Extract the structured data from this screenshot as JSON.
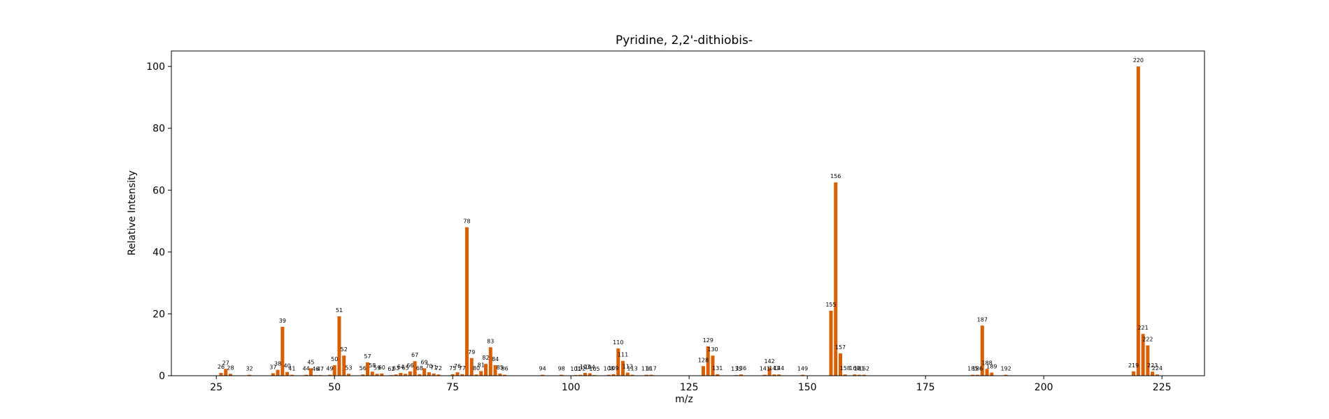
{
  "chart_data": {
    "type": "bar",
    "title": "Pyridine, 2,2'-dithiobis-",
    "xlabel": "m/z",
    "ylabel": "Relative Intensity",
    "xlim": [
      15.5,
      234
    ],
    "ylim": [
      0,
      105
    ],
    "grid": false,
    "bar_color": "#d95f02",
    "xticks": [
      25,
      50,
      75,
      100,
      125,
      150,
      175,
      200,
      225
    ],
    "yticks": [
      0,
      20,
      40,
      60,
      80,
      100
    ],
    "peaks": [
      {
        "mz": 26,
        "intensity": 0.9
      },
      {
        "mz": 27,
        "intensity": 2.2
      },
      {
        "mz": 28,
        "intensity": 0.6
      },
      {
        "mz": 32,
        "intensity": 0.3
      },
      {
        "mz": 37,
        "intensity": 0.8
      },
      {
        "mz": 38,
        "intensity": 1.9
      },
      {
        "mz": 39,
        "intensity": 15.8
      },
      {
        "mz": 40,
        "intensity": 1.2
      },
      {
        "mz": 41,
        "intensity": 0.3
      },
      {
        "mz": 44,
        "intensity": 0.3
      },
      {
        "mz": 45,
        "intensity": 2.4
      },
      {
        "mz": 46,
        "intensity": 0.2
      },
      {
        "mz": 47,
        "intensity": 0.2
      },
      {
        "mz": 49,
        "intensity": 0.3
      },
      {
        "mz": 50,
        "intensity": 3.4
      },
      {
        "mz": 51,
        "intensity": 19.2
      },
      {
        "mz": 52,
        "intensity": 6.5
      },
      {
        "mz": 53,
        "intensity": 0.6
      },
      {
        "mz": 56,
        "intensity": 0.4
      },
      {
        "mz": 57,
        "intensity": 4.3
      },
      {
        "mz": 58,
        "intensity": 1.3
      },
      {
        "mz": 59,
        "intensity": 0.6
      },
      {
        "mz": 60,
        "intensity": 0.7
      },
      {
        "mz": 62,
        "intensity": 0.2
      },
      {
        "mz": 63,
        "intensity": 0.4
      },
      {
        "mz": 64,
        "intensity": 0.9
      },
      {
        "mz": 65,
        "intensity": 0.6
      },
      {
        "mz": 66,
        "intensity": 1.4
      },
      {
        "mz": 67,
        "intensity": 4.7
      },
      {
        "mz": 68,
        "intensity": 0.5
      },
      {
        "mz": 69,
        "intensity": 2.4
      },
      {
        "mz": 70,
        "intensity": 1.1
      },
      {
        "mz": 71,
        "intensity": 0.7
      },
      {
        "mz": 72,
        "intensity": 0.4
      },
      {
        "mz": 75,
        "intensity": 0.5
      },
      {
        "mz": 76,
        "intensity": 1.1
      },
      {
        "mz": 77,
        "intensity": 0.5
      },
      {
        "mz": 78,
        "intensity": 48.0
      },
      {
        "mz": 79,
        "intensity": 5.7
      },
      {
        "mz": 80,
        "intensity": 0.4
      },
      {
        "mz": 81,
        "intensity": 1.5
      },
      {
        "mz": 82,
        "intensity": 3.8
      },
      {
        "mz": 83,
        "intensity": 9.2
      },
      {
        "mz": 84,
        "intensity": 3.4
      },
      {
        "mz": 85,
        "intensity": 0.7
      },
      {
        "mz": 86,
        "intensity": 0.3
      },
      {
        "mz": 94,
        "intensity": 0.3
      },
      {
        "mz": 98,
        "intensity": 0.3
      },
      {
        "mz": 101,
        "intensity": 0.2
      },
      {
        "mz": 102,
        "intensity": 0.3
      },
      {
        "mz": 103,
        "intensity": 0.9
      },
      {
        "mz": 104,
        "intensity": 0.8
      },
      {
        "mz": 105,
        "intensity": 0.2
      },
      {
        "mz": 108,
        "intensity": 0.3
      },
      {
        "mz": 109,
        "intensity": 0.5
      },
      {
        "mz": 110,
        "intensity": 8.8
      },
      {
        "mz": 111,
        "intensity": 4.8
      },
      {
        "mz": 112,
        "intensity": 1.0
      },
      {
        "mz": 113,
        "intensity": 0.3
      },
      {
        "mz": 116,
        "intensity": 0.3
      },
      {
        "mz": 117,
        "intensity": 0.3
      },
      {
        "mz": 128,
        "intensity": 3.1
      },
      {
        "mz": 129,
        "intensity": 9.5
      },
      {
        "mz": 130,
        "intensity": 6.5
      },
      {
        "mz": 131,
        "intensity": 0.5
      },
      {
        "mz": 135,
        "intensity": 0.2
      },
      {
        "mz": 136,
        "intensity": 0.4
      },
      {
        "mz": 141,
        "intensity": 0.3
      },
      {
        "mz": 142,
        "intensity": 2.7
      },
      {
        "mz": 143,
        "intensity": 0.4
      },
      {
        "mz": 144,
        "intensity": 0.4
      },
      {
        "mz": 149,
        "intensity": 0.3
      },
      {
        "mz": 155,
        "intensity": 21.0
      },
      {
        "mz": 156,
        "intensity": 62.5
      },
      {
        "mz": 157,
        "intensity": 7.2
      },
      {
        "mz": 158,
        "intensity": 0.4
      },
      {
        "mz": 160,
        "intensity": 0.4
      },
      {
        "mz": 161,
        "intensity": 0.3
      },
      {
        "mz": 162,
        "intensity": 0.3
      },
      {
        "mz": 185,
        "intensity": 0.3
      },
      {
        "mz": 186,
        "intensity": 0.3
      },
      {
        "mz": 187,
        "intensity": 16.2
      },
      {
        "mz": 188,
        "intensity": 2.2
      },
      {
        "mz": 189,
        "intensity": 1.0
      },
      {
        "mz": 192,
        "intensity": 0.3
      },
      {
        "mz": 219,
        "intensity": 1.4
      },
      {
        "mz": 220,
        "intensity": 100.0
      },
      {
        "mz": 221,
        "intensity": 13.5
      },
      {
        "mz": 222,
        "intensity": 9.8
      },
      {
        "mz": 223,
        "intensity": 1.3
      },
      {
        "mz": 224,
        "intensity": 0.4
      }
    ]
  }
}
